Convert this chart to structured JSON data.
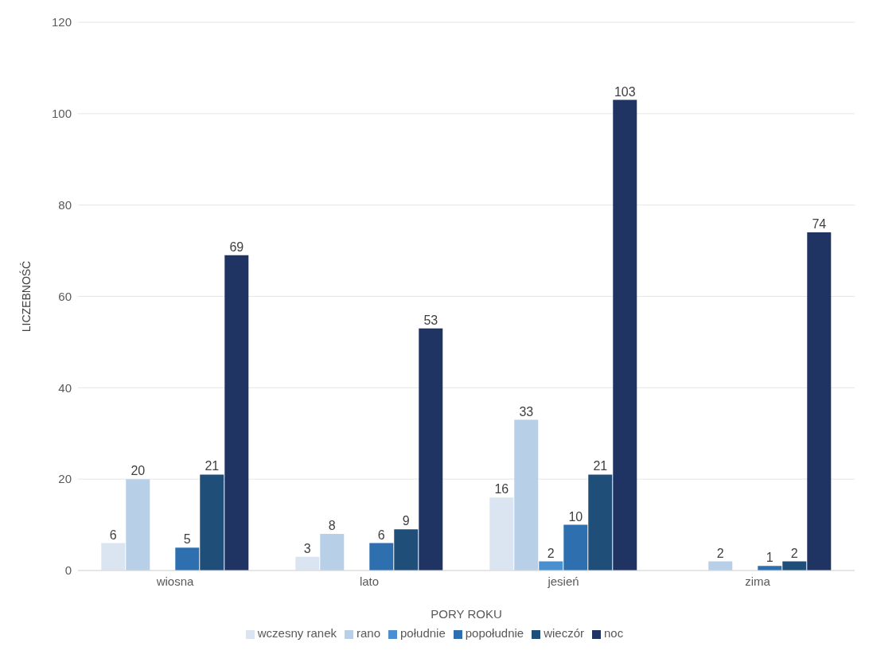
{
  "chart_data": {
    "type": "bar",
    "xlabel": "PORY ROKU",
    "ylabel": "LICZEBNOŚĆ",
    "categories": [
      "wiosna",
      "lato",
      "jesień",
      "zima"
    ],
    "series": [
      {
        "name": "wczesny ranek",
        "color": "#dbe5f1",
        "values": [
          6,
          3,
          16,
          null
        ]
      },
      {
        "name": "rano",
        "color": "#b8cfe8",
        "values": [
          20,
          8,
          33,
          2
        ]
      },
      {
        "name": "południe",
        "color": "#4a90d0",
        "values": [
          null,
          null,
          2,
          null
        ]
      },
      {
        "name": "popołudnie",
        "color": "#2e6fb0",
        "values": [
          5,
          6,
          10,
          1
        ]
      },
      {
        "name": "wieczór",
        "color": "#1f4e79",
        "values": [
          21,
          9,
          21,
          2
        ]
      },
      {
        "name": "noc",
        "color": "#1f3462",
        "values": [
          69,
          53,
          103,
          74
        ]
      }
    ],
    "ylim": [
      0,
      120
    ],
    "yticks": [
      0,
      20,
      40,
      60,
      80,
      100,
      120
    ],
    "grid": "y",
    "legend": "bottom",
    "data_labels": true
  }
}
